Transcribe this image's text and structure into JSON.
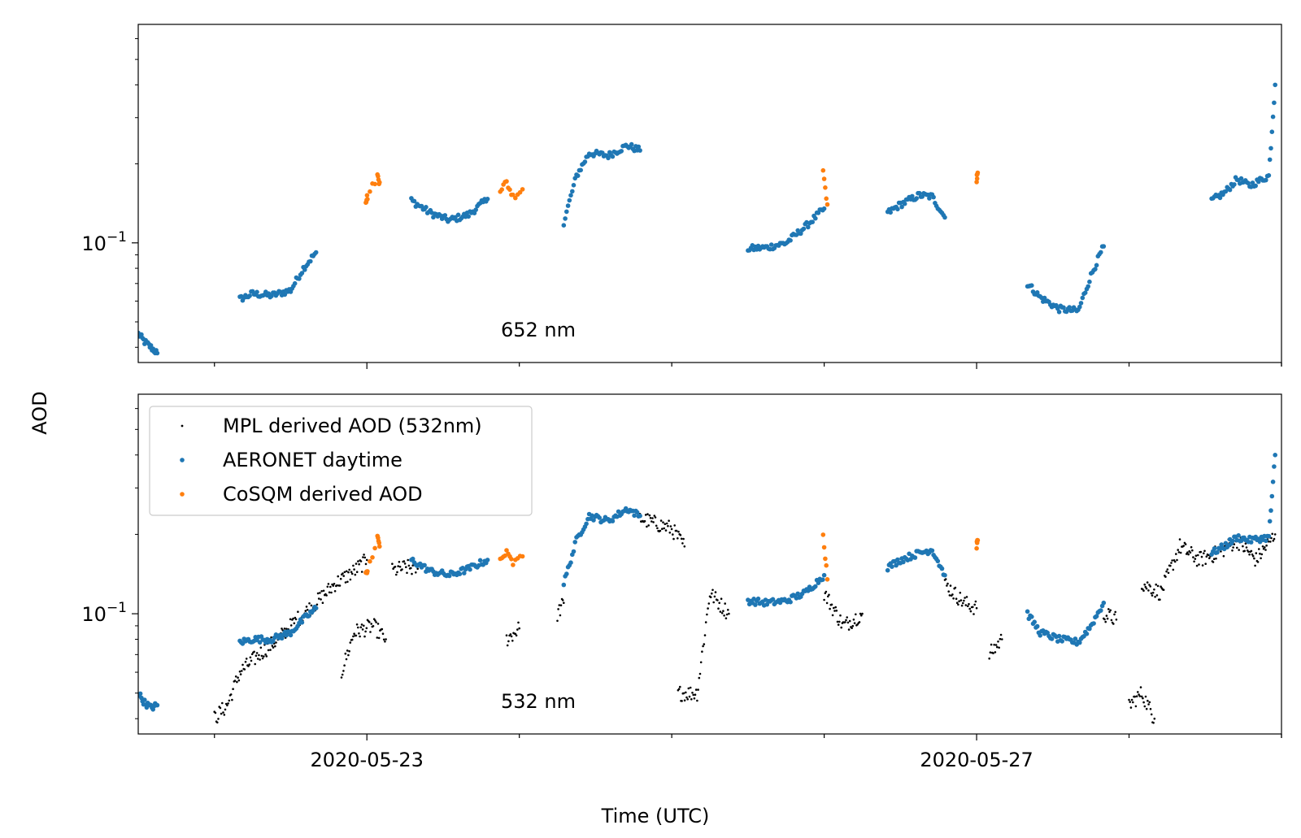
{
  "figure": {
    "ylabel": "AOD",
    "xlabel": "Time (UTC)"
  },
  "colors": {
    "mpl": "#000000",
    "aeronet": "#1f77b4",
    "cosqm": "#ff7f0e"
  },
  "legend": {
    "placement": "upper-left (bottom panel)",
    "items": [
      {
        "label": "MPL derived AOD (532nm)",
        "color": "#000000",
        "marker": "small-dot"
      },
      {
        "label": "AERONET daytime",
        "color": "#1f77b4",
        "marker": "dot"
      },
      {
        "label": "CoSQM derived AOD",
        "color": "#ff7f0e",
        "marker": "dot"
      }
    ]
  },
  "chart_data": [
    {
      "type": "scatter",
      "panel_label": "652 nm",
      "yscale": "log",
      "ylim": [
        0.035,
        0.68
      ],
      "xlim": [
        "2020-05-21T12:00",
        "2020-05-29T00:00"
      ],
      "xticks_major": [
        "2020-05-23",
        "2020-05-27"
      ],
      "ytick_labeled": "10^-1",
      "grid": false,
      "series": [
        {
          "name": "AERONET daytime",
          "segments": [
            [
              [
                "2020-05-21T12:00",
                0.045
              ],
              [
                "2020-05-21T13:00",
                0.042
              ],
              [
                "2020-05-21T14:00",
                0.04
              ],
              [
                "2020-05-21T15:00",
                0.038
              ]
            ],
            [
              [
                "2020-05-22T04:00",
                0.061
              ],
              [
                "2020-05-22T06:00",
                0.064
              ],
              [
                "2020-05-22T09:00",
                0.063
              ],
              [
                "2020-05-22T12:00",
                0.066
              ],
              [
                "2020-05-22T14:00",
                0.08
              ],
              [
                "2020-05-22T16:00",
                0.092
              ]
            ],
            [
              [
                "2020-05-23T07:00",
                0.145
              ],
              [
                "2020-05-23T10:00",
                0.13
              ],
              [
                "2020-05-23T13:00",
                0.122
              ],
              [
                "2020-05-23T16:00",
                0.128
              ],
              [
                "2020-05-23T19:00",
                0.147
              ]
            ],
            [
              [
                "2020-05-24T07:00",
                0.12
              ],
              [
                "2020-05-24T09:00",
                0.18
              ],
              [
                "2020-05-24T11:00",
                0.22
              ],
              [
                "2020-05-24T14:00",
                0.215
              ],
              [
                "2020-05-24T17:00",
                0.235
              ],
              [
                "2020-05-24T19:00",
                0.225
              ]
            ],
            [
              [
                "2020-05-25T12:00",
                0.095
              ],
              [
                "2020-05-25T15:00",
                0.096
              ],
              [
                "2020-05-25T18:00",
                0.1
              ],
              [
                "2020-05-25T21:00",
                0.115
              ],
              [
                "2020-05-26T00:00",
                0.135
              ]
            ],
            [
              [
                "2020-05-26T10:00",
                0.13
              ],
              [
                "2020-05-26T12:00",
                0.14
              ],
              [
                "2020-05-26T15:00",
                0.152
              ],
              [
                "2020-05-26T17:00",
                0.15
              ],
              [
                "2020-05-26T19:00",
                0.125
              ]
            ],
            [
              [
                "2020-05-27T08:00",
                0.07
              ],
              [
                "2020-05-27T10:00",
                0.062
              ],
              [
                "2020-05-27T13:00",
                0.056
              ],
              [
                "2020-05-27T16:00",
                0.055
              ],
              [
                "2020-05-27T18:00",
                0.075
              ],
              [
                "2020-05-27T20:00",
                0.097
              ]
            ],
            [
              [
                "2020-05-28T13:00",
                0.145
              ],
              [
                "2020-05-28T15:00",
                0.155
              ],
              [
                "2020-05-28T17:00",
                0.175
              ],
              [
                "2020-05-28T19:00",
                0.165
              ],
              [
                "2020-05-28T22:00",
                0.18
              ],
              [
                "2020-05-28T23:00",
                0.4
              ]
            ]
          ]
        },
        {
          "name": "CoSQM derived AOD",
          "segments": [
            [
              [
                "2020-05-22T23:50",
                0.145
              ],
              [
                "2020-05-23T00:05",
                0.15
              ],
              [
                "2020-05-23T01:40",
                0.18
              ],
              [
                "2020-05-23T02:00",
                0.17
              ]
            ],
            [
              [
                "2020-05-23T21:00",
                0.16
              ],
              [
                "2020-05-23T22:00",
                0.17
              ],
              [
                "2020-05-23T23:00",
                0.15
              ],
              [
                "2020-05-24T00:30",
                0.16
              ]
            ],
            [
              [
                "2020-05-25T23:50",
                0.19
              ],
              [
                "2020-05-26T00:30",
                0.14
              ]
            ],
            [
              [
                "2020-05-27T00:00",
                0.175
              ],
              [
                "2020-05-27T00:10",
                0.185
              ]
            ]
          ]
        }
      ]
    },
    {
      "type": "scatter",
      "panel_label": "532 nm",
      "yscale": "log",
      "ylim": [
        0.035,
        0.68
      ],
      "xlim": [
        "2020-05-21T12:00",
        "2020-05-29T00:00"
      ],
      "xticks_major": [
        "2020-05-23",
        "2020-05-27"
      ],
      "ytick_labeled": "10^-1",
      "grid": false,
      "series": [
        {
          "name": "MPL derived AOD (532nm)",
          "segments": [
            [
              [
                "2020-05-22T00:00",
                0.04
              ],
              [
                "2020-05-22T02:00",
                0.045
              ],
              [
                "2020-05-22T04:00",
                0.06
              ],
              [
                "2020-05-22T07:00",
                0.07
              ],
              [
                "2020-05-22T10:00",
                0.08
              ],
              [
                "2020-05-22T13:00",
                0.095
              ],
              [
                "2020-05-22T16:00",
                0.11
              ],
              [
                "2020-05-22T19:00",
                0.13
              ],
              [
                "2020-05-22T22:00",
                0.145
              ],
              [
                "2020-05-23T00:00",
                0.16
              ]
            ],
            [
              [
                "2020-05-22T20:00",
                0.06
              ],
              [
                "2020-05-22T22:00",
                0.085
              ],
              [
                "2020-05-23T01:00",
                0.09
              ],
              [
                "2020-05-23T03:00",
                0.08
              ]
            ],
            [
              [
                "2020-05-23T04:00",
                0.145
              ],
              [
                "2020-05-23T06:00",
                0.15
              ],
              [
                "2020-05-23T08:00",
                0.148
              ]
            ],
            [
              [
                "2020-05-23T22:00",
                0.08
              ],
              [
                "2020-05-24T00:00",
                0.088
              ]
            ],
            [
              [
                "2020-05-24T06:00",
                0.1
              ],
              [
                "2020-05-24T07:00",
                0.11
              ]
            ],
            [
              [
                "2020-05-24T19:00",
                0.23
              ],
              [
                "2020-05-25T00:00",
                0.21
              ],
              [
                "2020-05-25T02:00",
                0.18
              ]
            ],
            [
              [
                "2020-05-25T01:00",
                0.05
              ],
              [
                "2020-05-25T04:00",
                0.05
              ],
              [
                "2020-05-25T06:00",
                0.12
              ],
              [
                "2020-05-25T09:00",
                0.1
              ]
            ],
            [
              [
                "2020-05-26T00:00",
                0.12
              ],
              [
                "2020-05-26T03:00",
                0.09
              ],
              [
                "2020-05-26T06:00",
                0.1
              ]
            ],
            [
              [
                "2020-05-26T19:00",
                0.13
              ],
              [
                "2020-05-26T22:00",
                0.11
              ],
              [
                "2020-05-27T00:00",
                0.105
              ]
            ],
            [
              [
                "2020-05-27T02:00",
                0.07
              ],
              [
                "2020-05-27T04:00",
                0.08
              ]
            ],
            [
              [
                "2020-05-27T20:00",
                0.1
              ],
              [
                "2020-05-27T22:00",
                0.095
              ]
            ],
            [
              [
                "2020-05-28T00:00",
                0.045
              ],
              [
                "2020-05-28T02:00",
                0.05
              ],
              [
                "2020-05-28T04:00",
                0.04
              ]
            ],
            [
              [
                "2020-05-28T02:00",
                0.13
              ],
              [
                "2020-05-28T05:00",
                0.12
              ],
              [
                "2020-05-28T08:00",
                0.18
              ],
              [
                "2020-05-28T11:00",
                0.16
              ],
              [
                "2020-05-28T14:00",
                0.17
              ],
              [
                "2020-05-28T17:00",
                0.19
              ],
              [
                "2020-05-28T20:00",
                0.16
              ],
              [
                "2020-05-28T23:00",
                0.2
              ]
            ]
          ]
        },
        {
          "name": "AERONET daytime",
          "segments": [
            [
              [
                "2020-05-21T12:00",
                0.05
              ],
              [
                "2020-05-21T13:00",
                0.046
              ],
              [
                "2020-05-21T14:00",
                0.044
              ],
              [
                "2020-05-21T15:00",
                0.045
              ]
            ],
            [
              [
                "2020-05-22T04:00",
                0.078
              ],
              [
                "2020-05-22T06:00",
                0.08
              ],
              [
                "2020-05-22T09:00",
                0.08
              ],
              [
                "2020-05-22T12:00",
                0.085
              ],
              [
                "2020-05-22T14:00",
                0.095
              ],
              [
                "2020-05-22T16:00",
                0.105
              ]
            ],
            [
              [
                "2020-05-23T07:00",
                0.16
              ],
              [
                "2020-05-23T10:00",
                0.145
              ],
              [
                "2020-05-23T13:00",
                0.14
              ],
              [
                "2020-05-23T16:00",
                0.148
              ],
              [
                "2020-05-23T19:00",
                0.16
              ]
            ],
            [
              [
                "2020-05-24T07:00",
                0.13
              ],
              [
                "2020-05-24T09:00",
                0.19
              ],
              [
                "2020-05-24T11:00",
                0.235
              ],
              [
                "2020-05-24T14:00",
                0.225
              ],
              [
                "2020-05-24T17:00",
                0.25
              ],
              [
                "2020-05-24T19:00",
                0.235
              ]
            ],
            [
              [
                "2020-05-25T12:00",
                0.112
              ],
              [
                "2020-05-25T15:00",
                0.11
              ],
              [
                "2020-05-25T18:00",
                0.112
              ],
              [
                "2020-05-25T21:00",
                0.12
              ],
              [
                "2020-05-26T00:00",
                0.14
              ]
            ],
            [
              [
                "2020-05-26T10:00",
                0.15
              ],
              [
                "2020-05-26T12:00",
                0.16
              ],
              [
                "2020-05-26T15:00",
                0.17
              ],
              [
                "2020-05-26T17:00",
                0.175
              ],
              [
                "2020-05-26T19:00",
                0.14
              ]
            ],
            [
              [
                "2020-05-27T08:00",
                0.1
              ],
              [
                "2020-05-27T10:00",
                0.085
              ],
              [
                "2020-05-27T13:00",
                0.08
              ],
              [
                "2020-05-27T16:00",
                0.078
              ],
              [
                "2020-05-27T18:00",
                0.09
              ],
              [
                "2020-05-27T20:00",
                0.11
              ]
            ],
            [
              [
                "2020-05-28T13:00",
                0.17
              ],
              [
                "2020-05-28T15:00",
                0.18
              ],
              [
                "2020-05-28T17:00",
                0.195
              ],
              [
                "2020-05-28T19:00",
                0.19
              ],
              [
                "2020-05-28T22:00",
                0.195
              ],
              [
                "2020-05-28T23:00",
                0.4
              ]
            ]
          ]
        },
        {
          "name": "CoSQM derived AOD",
          "segments": [
            [
              [
                "2020-05-22T23:50",
                0.14
              ],
              [
                "2020-05-23T00:05",
                0.145
              ],
              [
                "2020-05-23T01:40",
                0.195
              ],
              [
                "2020-05-23T02:00",
                0.18
              ]
            ],
            [
              [
                "2020-05-23T21:00",
                0.16
              ],
              [
                "2020-05-23T22:00",
                0.17
              ],
              [
                "2020-05-23T23:00",
                0.155
              ],
              [
                "2020-05-24T00:30",
                0.165
              ]
            ],
            [
              [
                "2020-05-25T23:50",
                0.2
              ],
              [
                "2020-05-26T00:30",
                0.135
              ]
            ],
            [
              [
                "2020-05-27T00:00",
                0.18
              ],
              [
                "2020-05-27T00:10",
                0.19
              ]
            ]
          ]
        }
      ]
    }
  ]
}
